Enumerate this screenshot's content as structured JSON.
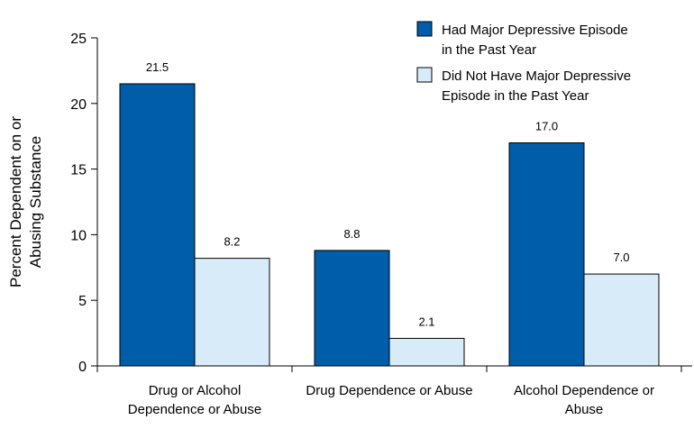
{
  "chart_data": {
    "type": "bar",
    "title": "",
    "xlabel": "",
    "ylabel": "Percent Dependent on or Abusing Substance",
    "ylabel_lines": [
      "Percent Dependent on or",
      "Abusing Substance"
    ],
    "ylim": [
      0,
      25
    ],
    "yticks": [
      0,
      5,
      10,
      15,
      20,
      25
    ],
    "categories": [
      "Drug or Alcohol Dependence or Abuse",
      "Drug Dependence or Abuse",
      "Alcohol Dependence or Abuse"
    ],
    "category_lines": [
      [
        "Drug or Alcohol",
        "Dependence or Abuse"
      ],
      [
        "Drug Dependence or Abuse"
      ],
      [
        "Alcohol Dependence or",
        "Abuse"
      ]
    ],
    "series": [
      {
        "name": "Had Major Depressive Episode in the Past Year",
        "name_lines": [
          "Had Major Depressive Episode",
          "in the Past Year"
        ],
        "values": [
          21.5,
          8.8,
          17.0
        ],
        "labels": [
          "21.5",
          "8.8",
          "17.0"
        ],
        "color": "#005daa"
      },
      {
        "name": "Did Not Have Major Depressive Episode in the Past Year",
        "name_lines": [
          "Did Not Have Major Depressive",
          "Episode in the Past Year"
        ],
        "values": [
          8.2,
          2.1,
          7.0
        ],
        "labels": [
          "8.2",
          "2.1",
          "7.0"
        ],
        "color": "#d7ecf8"
      }
    ],
    "grid": false,
    "legend_position": "top-right"
  }
}
